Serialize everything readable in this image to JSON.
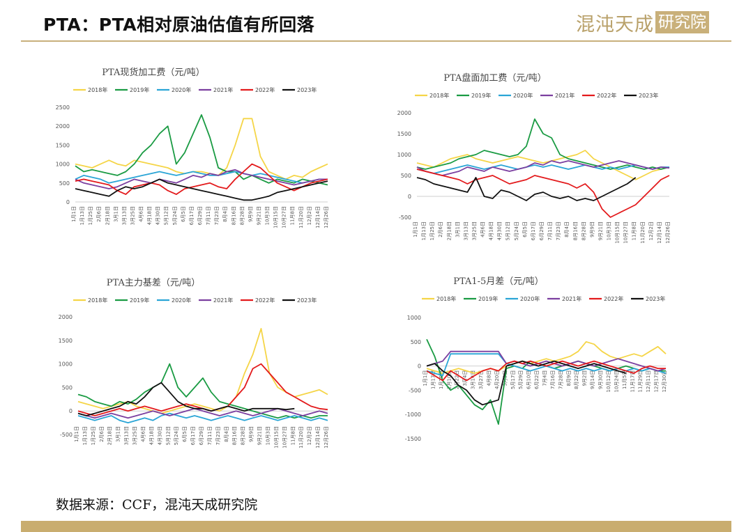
{
  "header": {
    "title": "PTA：PTA相对原油估值有所回落"
  },
  "logo": {
    "main": "混沌天成",
    "box": "研究院"
  },
  "footer": {
    "source": "数据来源：CCF，混沌天成研究院"
  },
  "colors": {
    "2018年": "#f5d547",
    "2019年": "#1a9b43",
    "2020年": "#2aa5d6",
    "2021年": "#7b3fa0",
    "2022年": "#e31a1c",
    "2023年": "#111111",
    "accent": "#c9ad6f"
  },
  "chart_data": [
    {
      "type": "line",
      "title": "PTA现货加工费（元/吨）",
      "ylim": [
        0,
        2500
      ],
      "yticks": [
        0,
        500,
        1000,
        1500,
        2000,
        2500
      ],
      "xticks": [
        "1月1日",
        "1月13日",
        "1月25日",
        "2月6日",
        "2月18日",
        "3月1日",
        "3月13日",
        "3月25日",
        "4月6日",
        "4月18日",
        "4月30日",
        "5月12日",
        "5月24日",
        "6月5日",
        "6月17日",
        "6月29日",
        "7月11日",
        "7月23日",
        "8月4日",
        "8月16日",
        "8月28日",
        "9月9日",
        "9月21日",
        "10月3日",
        "10月15日",
        "10月27日",
        "11月8日",
        "11月20日",
        "12月2日",
        "12月14日",
        "12月26日"
      ],
      "series": [
        {
          "name": "2018年",
          "values": [
            1000,
            950,
            900,
            1000,
            1100,
            1000,
            950,
            1100,
            1050,
            1000,
            950,
            900,
            800,
            750,
            800,
            800,
            750,
            700,
            900,
            1500,
            2200,
            2200,
            1200,
            800,
            700,
            600,
            700,
            650,
            800,
            900,
            1000
          ]
        },
        {
          "name": "2019年",
          "values": [
            950,
            800,
            850,
            800,
            750,
            700,
            800,
            1000,
            1300,
            1500,
            1800,
            2000,
            1000,
            1300,
            1800,
            2300,
            1700,
            900,
            800,
            800,
            600,
            700,
            600,
            500,
            600,
            550,
            500,
            600,
            550,
            500,
            450
          ]
        },
        {
          "name": "2020年",
          "values": [
            600,
            700,
            650,
            600,
            500,
            550,
            600,
            650,
            700,
            750,
            800,
            750,
            700,
            750,
            800,
            750,
            700,
            700,
            750,
            800,
            750,
            700,
            750,
            700,
            650,
            600,
            550,
            500,
            550,
            600,
            600
          ]
        },
        {
          "name": "2021年",
          "values": [
            600,
            500,
            450,
            400,
            350,
            400,
            500,
            600,
            550,
            500,
            600,
            550,
            500,
            600,
            700,
            650,
            750,
            700,
            800,
            850,
            750,
            700,
            650,
            600,
            550,
            500,
            450,
            500,
            550,
            600,
            600
          ]
        },
        {
          "name": "2022年",
          "values": [
            550,
            600,
            550,
            500,
            450,
            300,
            200,
            400,
            450,
            500,
            450,
            300,
            200,
            350,
            400,
            450,
            500,
            400,
            350,
            600,
            800,
            1000,
            900,
            700,
            500,
            400,
            300,
            400,
            500,
            550,
            600
          ]
        },
        {
          "name": "2023年",
          "values": [
            350,
            300,
            250,
            200,
            150,
            300,
            400,
            350,
            400,
            500,
            600,
            500,
            450,
            400,
            350,
            300,
            250,
            200,
            150,
            100,
            50,
            50,
            100,
            150,
            250,
            300,
            350,
            400,
            450,
            500,
            550
          ]
        }
      ]
    },
    {
      "type": "line",
      "title": "PTA盘面加工费（元/吨）",
      "ylim": [
        -500,
        2000
      ],
      "yticks": [
        -500,
        0,
        500,
        1000,
        1500,
        2000
      ],
      "xticks": [
        "1月1日",
        "1月13日",
        "1月25日",
        "2月6日",
        "2月18日",
        "3月1日",
        "3月13日",
        "3月25日",
        "4月6日",
        "4月18日",
        "4月30日",
        "5月12日",
        "5月24日",
        "6月5日",
        "6月17日",
        "6月29日",
        "7月11日",
        "7月23日",
        "8月4日",
        "8月16日",
        "8月28日",
        "9月9日",
        "9月21日",
        "10月3日",
        "10月15日",
        "10月27日",
        "11月8日",
        "11月20日",
        "12月2日",
        "12月14日",
        "12月26日"
      ],
      "series": [
        {
          "name": "2018年",
          "values": [
            800,
            750,
            700,
            800,
            900,
            950,
            1000,
            900,
            850,
            800,
            850,
            900,
            950,
            900,
            850,
            800,
            850,
            900,
            950,
            1000,
            1100,
            900,
            800,
            700,
            600,
            500,
            400,
            500,
            600,
            650,
            700
          ]
        },
        {
          "name": "2019年",
          "values": [
            700,
            650,
            700,
            750,
            800,
            900,
            950,
            1000,
            1100,
            1050,
            1000,
            950,
            1000,
            1200,
            1850,
            1500,
            1400,
            1000,
            900,
            850,
            800,
            750,
            700,
            650,
            700,
            750,
            700,
            650,
            700,
            650,
            700
          ]
        },
        {
          "name": "2020年",
          "values": [
            650,
            600,
            550,
            600,
            650,
            700,
            750,
            700,
            650,
            700,
            750,
            700,
            650,
            700,
            750,
            700,
            750,
            700,
            650,
            700,
            750,
            700,
            650,
            700,
            650,
            700,
            750,
            700,
            650,
            700,
            700
          ]
        },
        {
          "name": "2021年",
          "values": [
            700,
            600,
            550,
            500,
            550,
            600,
            700,
            650,
            600,
            700,
            650,
            600,
            650,
            700,
            800,
            750,
            850,
            800,
            850,
            800,
            750,
            700,
            750,
            800,
            850,
            800,
            750,
            700,
            650,
            700,
            680
          ]
        },
        {
          "name": "2022年",
          "values": [
            650,
            600,
            550,
            500,
            450,
            400,
            300,
            400,
            450,
            500,
            400,
            300,
            350,
            400,
            500,
            450,
            400,
            350,
            300,
            200,
            300,
            100,
            -300,
            -500,
            -400,
            -300,
            -200,
            0,
            200,
            400,
            500
          ]
        },
        {
          "name": "2023年",
          "values": [
            450,
            400,
            300,
            250,
            200,
            150,
            100,
            450,
            0,
            -50,
            150,
            100,
            0,
            -100,
            50,
            100,
            0,
            -50,
            0,
            -100,
            -50,
            -100,
            0,
            100,
            200,
            300,
            450,
            null,
            null,
            null,
            null
          ]
        }
      ]
    },
    {
      "type": "line",
      "title": "PTA主力基差（元/吨）",
      "ylim": [
        -500,
        2000
      ],
      "yticks": [
        -500,
        0,
        500,
        1000,
        1500,
        2000
      ],
      "xticks": [
        "1月1日",
        "1月13日",
        "1月25日",
        "2月6日",
        "2月18日",
        "3月1日",
        "3月13日",
        "3月25日",
        "4月6日",
        "4月18日",
        "4月30日",
        "5月12日",
        "5月24日",
        "6月5日",
        "6月17日",
        "6月29日",
        "7月11日",
        "7月23日",
        "8月4日",
        "8月16日",
        "8月28日",
        "9月9日",
        "9月21日",
        "10月3日",
        "10月15日",
        "10月27日",
        "11月8日",
        "11月20日",
        "12月2日",
        "12月14日",
        "12月26日"
      ],
      "series": [
        {
          "name": "2018年",
          "values": [
            200,
            150,
            100,
            50,
            100,
            150,
            200,
            100,
            50,
            0,
            -50,
            0,
            50,
            100,
            150,
            100,
            50,
            0,
            100,
            300,
            800,
            1200,
            1750,
            800,
            500,
            400,
            300,
            350,
            400,
            450,
            350
          ]
        },
        {
          "name": "2019年",
          "values": [
            350,
            300,
            200,
            150,
            100,
            200,
            150,
            250,
            400,
            500,
            600,
            1000,
            500,
            300,
            500,
            700,
            400,
            200,
            150,
            100,
            50,
            0,
            -50,
            -100,
            -150,
            -100,
            -150,
            -100,
            -150,
            -100,
            -100
          ]
        },
        {
          "name": "2020年",
          "values": [
            -100,
            -150,
            -200,
            -150,
            -100,
            -200,
            -250,
            -200,
            -150,
            -200,
            -100,
            -50,
            -100,
            -150,
            -100,
            -150,
            -200,
            -150,
            -100,
            -150,
            -200,
            -150,
            -100,
            -150,
            -200,
            -150,
            -100,
            -150,
            -200,
            -150,
            -200
          ]
        },
        {
          "name": "2021年",
          "values": [
            -50,
            -100,
            -150,
            -100,
            -50,
            -100,
            -150,
            -100,
            -50,
            0,
            -50,
            -100,
            -50,
            0,
            50,
            0,
            -50,
            -100,
            -50,
            0,
            -50,
            -100,
            -50,
            0,
            50,
            0,
            -50,
            -100,
            -50,
            0,
            -50
          ]
        },
        {
          "name": "2022年",
          "values": [
            0,
            -50,
            -100,
            -50,
            0,
            50,
            0,
            50,
            100,
            50,
            0,
            50,
            100,
            150,
            100,
            50,
            0,
            50,
            100,
            300,
            500,
            900,
            1000,
            800,
            600,
            400,
            300,
            200,
            100,
            50,
            30
          ]
        },
        {
          "name": "2023年",
          "values": [
            -50,
            -100,
            -50,
            0,
            50,
            100,
            200,
            150,
            300,
            500,
            600,
            400,
            200,
            100,
            50,
            50,
            0,
            50,
            100,
            50,
            0,
            50,
            50,
            50,
            50,
            30,
            50,
            null,
            null,
            null,
            null
          ]
        }
      ]
    },
    {
      "type": "line",
      "title": "PTA1-5月差（元/吨）",
      "ylim": [
        -1500,
        1000
      ],
      "yticks": [
        -1500,
        -1000,
        -500,
        0,
        500,
        1000
      ],
      "xticks": [
        "1月1日",
        "1月17日",
        "1月29日",
        "2月10日",
        "2月22日",
        "3月4日",
        "3月14日",
        "3月27日",
        "4月8日",
        "4月20日",
        "5月5日",
        "5月17日",
        "5月29日",
        "6月10日",
        "6月22日",
        "7月4日",
        "7月16日",
        "7月28日",
        "8月9日",
        "8月22日",
        "9月2日",
        "9月14日",
        "9月30日",
        "10月12日",
        "10月24日",
        "11月5日",
        "11月17日",
        "11月29日",
        "12月11日",
        "12月17日",
        "12月30日"
      ],
      "series": [
        {
          "name": "2018年",
          "values": [
            -50,
            -100,
            -150,
            -100,
            -50,
            -100,
            -150,
            -100,
            -50,
            -100,
            0,
            50,
            100,
            50,
            100,
            150,
            100,
            150,
            200,
            300,
            500,
            450,
            300,
            200,
            150,
            200,
            250,
            200,
            300,
            400,
            250
          ]
        },
        {
          "name": "2019年",
          "values": [
            550,
            200,
            -300,
            -500,
            -400,
            -600,
            -800,
            -900,
            -700,
            -1200,
            -50,
            0,
            -50,
            100,
            50,
            0,
            -50,
            0,
            50,
            100,
            50,
            0,
            -50,
            -100,
            -50,
            0,
            -50,
            -100,
            -50,
            -100,
            -100
          ]
        },
        {
          "name": "2020年",
          "values": [
            -100,
            -150,
            -200,
            250,
            250,
            250,
            250,
            250,
            250,
            250,
            50,
            0,
            -50,
            -100,
            -50,
            0,
            -50,
            -100,
            -50,
            -100,
            -50,
            -100,
            -50,
            -100,
            -50,
            -100,
            -50,
            -100,
            -50,
            -100,
            -150
          ]
        },
        {
          "name": "2021年",
          "values": [
            0,
            50,
            100,
            300,
            300,
            300,
            300,
            300,
            300,
            300,
            50,
            100,
            50,
            0,
            50,
            100,
            50,
            0,
            50,
            100,
            50,
            0,
            50,
            100,
            150,
            100,
            50,
            0,
            -50,
            -100,
            -50
          ]
        },
        {
          "name": "2022年",
          "values": [
            -100,
            -200,
            -300,
            -100,
            -200,
            -300,
            -200,
            -100,
            -50,
            -100,
            50,
            100,
            50,
            100,
            50,
            0,
            50,
            100,
            50,
            0,
            50,
            100,
            50,
            0,
            -50,
            -100,
            -150,
            -50,
            0,
            -50,
            -50
          ]
        },
        {
          "name": "2023年",
          "values": [
            0,
            50,
            -100,
            -200,
            -400,
            -500,
            -700,
            -800,
            -750,
            -700,
            0,
            50,
            100,
            50,
            0,
            50,
            100,
            50,
            0,
            -50,
            0,
            50,
            0,
            -50,
            -100,
            -150,
            null,
            null,
            null,
            null,
            null
          ]
        }
      ]
    }
  ]
}
